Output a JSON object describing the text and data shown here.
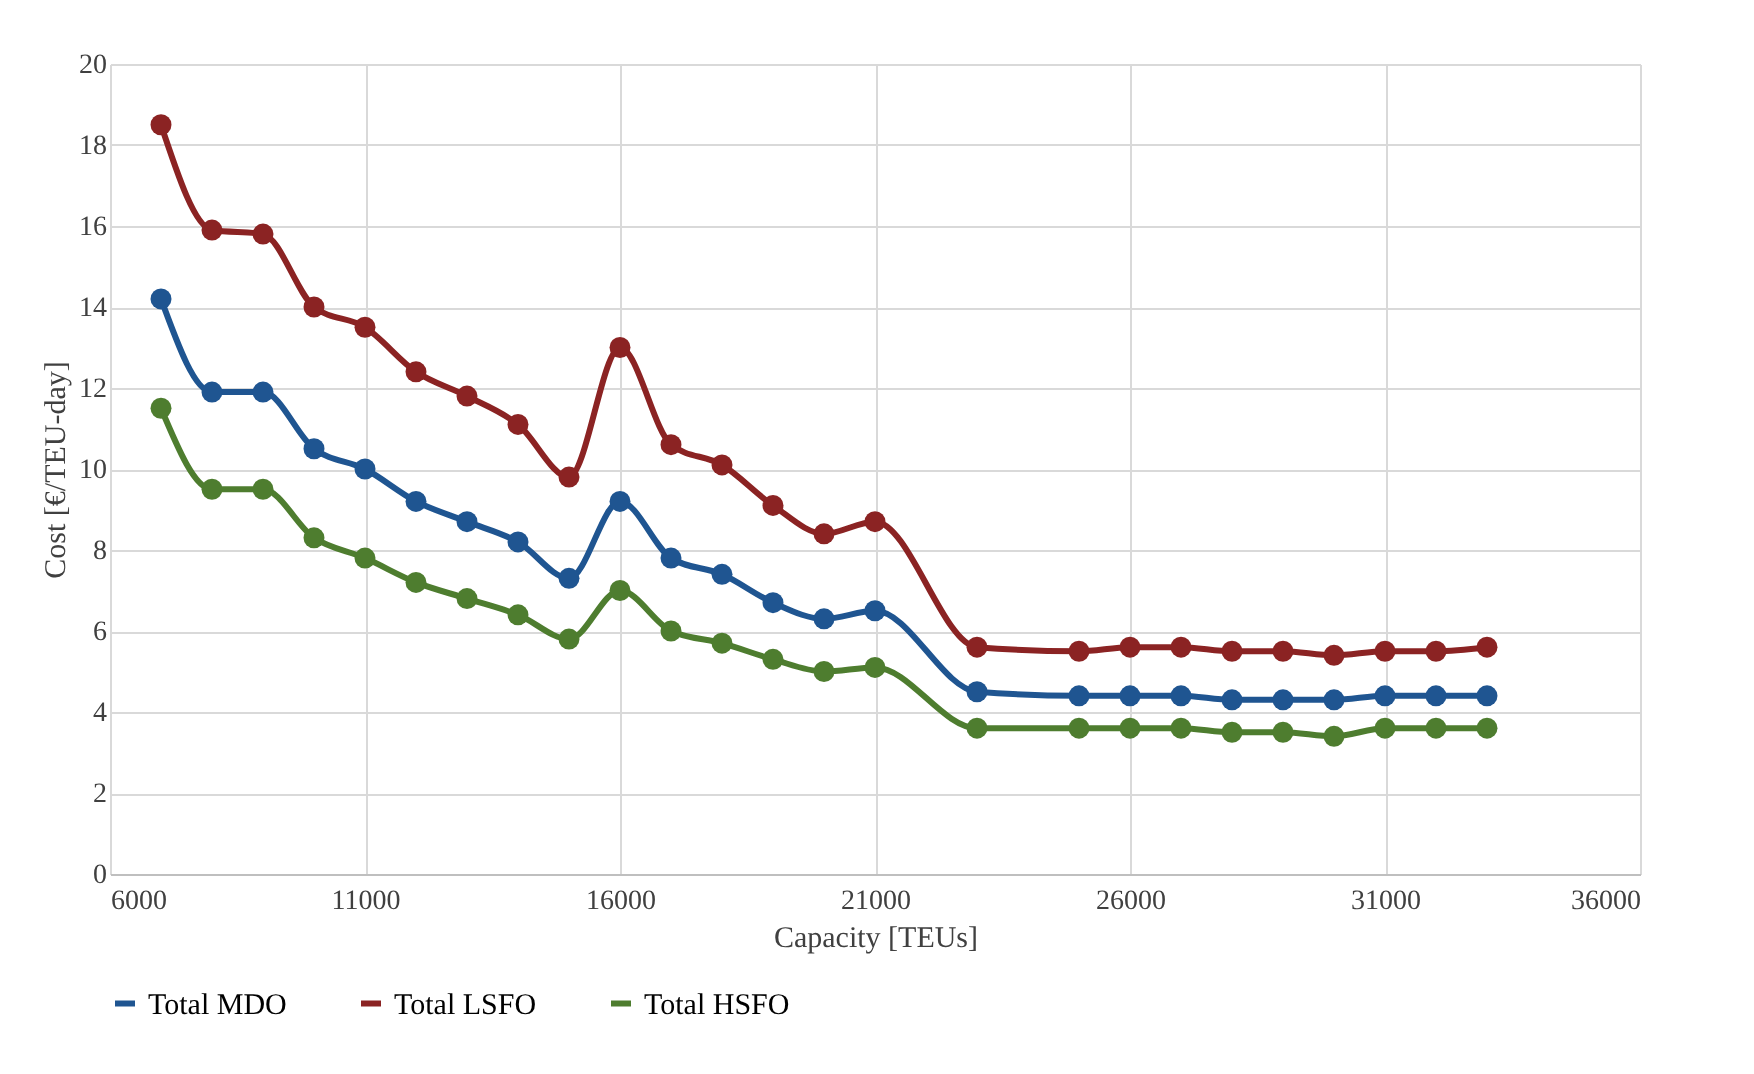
{
  "chart_data": {
    "type": "line",
    "xlabel": "Capacity [TEUs]",
    "ylabel": "Cost [€/TEU-day]",
    "x": [
      7000,
      8000,
      9000,
      10000,
      11000,
      12000,
      13000,
      14000,
      15000,
      16000,
      17000,
      18000,
      19000,
      20000,
      21000,
      23000,
      25000,
      26000,
      27000,
      28000,
      29000,
      30000,
      31000,
      32000,
      33000
    ],
    "series": [
      {
        "name": "Total MDO",
        "color": "#1f5591",
        "values": [
          14.2,
          11.9,
          11.9,
          10.5,
          10.0,
          9.2,
          8.7,
          8.2,
          7.3,
          9.2,
          7.8,
          7.4,
          6.7,
          6.3,
          6.5,
          4.5,
          4.4,
          4.4,
          4.4,
          4.3,
          4.3,
          4.3,
          4.4,
          4.4,
          4.4
        ]
      },
      {
        "name": "Total LSFO",
        "color": "#8b2323",
        "values": [
          18.5,
          15.9,
          15.8,
          14.0,
          13.5,
          12.4,
          11.8,
          11.1,
          9.8,
          13.0,
          10.6,
          10.1,
          9.1,
          8.4,
          8.7,
          5.6,
          5.5,
          5.6,
          5.6,
          5.5,
          5.5,
          5.4,
          5.5,
          5.5,
          5.6
        ]
      },
      {
        "name": "Total HSFO",
        "color": "#4e7d2f",
        "values": [
          11.5,
          9.5,
          9.5,
          8.3,
          7.8,
          7.2,
          6.8,
          6.4,
          5.8,
          7.0,
          6.0,
          5.7,
          5.3,
          5.0,
          5.1,
          3.6,
          3.6,
          3.6,
          3.6,
          3.5,
          3.5,
          3.4,
          3.6,
          3.6,
          3.6
        ]
      }
    ],
    "xlim": [
      6000,
      36000
    ],
    "xticks": [
      6000,
      11000,
      16000,
      21000,
      26000,
      31000,
      36000
    ],
    "ylim": [
      0,
      20
    ],
    "yticks": [
      0,
      2,
      4,
      6,
      8,
      10,
      12,
      14,
      16,
      18,
      20
    ],
    "grid": true,
    "legend": "bottom",
    "marker": "circle",
    "line_style": "solid"
  }
}
